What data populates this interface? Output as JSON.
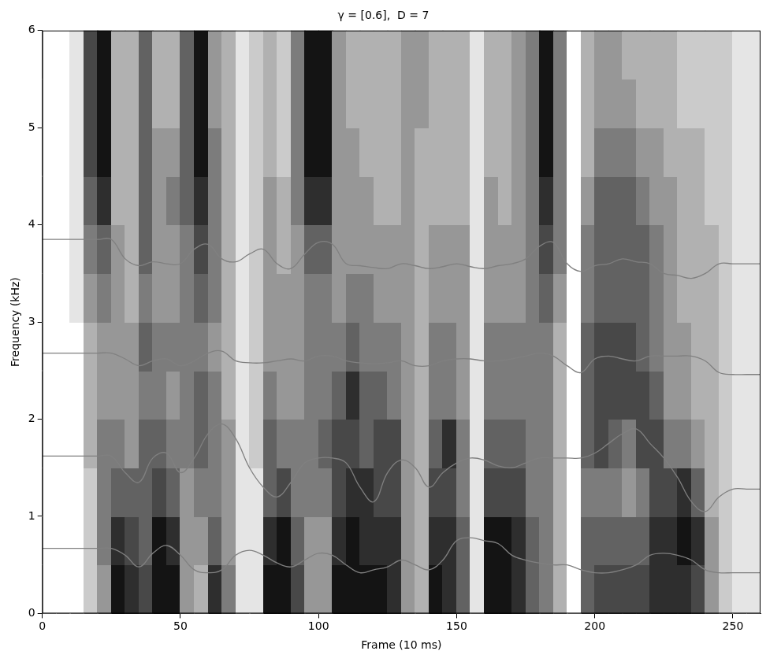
{
  "chart_data": {
    "type": "line",
    "title": "γ = [0.6],  D = 7",
    "x_label": "Frame (10 ms)",
    "y_label": "Frequency (kHz)",
    "xlim": [
      0,
      260
    ],
    "xticks": [
      0,
      50,
      100,
      150,
      200,
      250
    ],
    "ylim": [
      0,
      6
    ],
    "yticks": [
      0,
      1,
      2,
      3,
      4,
      5,
      6
    ],
    "grid": false,
    "x": [
      0,
      5,
      10,
      15,
      20,
      25,
      30,
      35,
      40,
      45,
      50,
      55,
      60,
      65,
      70,
      75,
      80,
      85,
      90,
      95,
      100,
      105,
      110,
      115,
      120,
      125,
      130,
      135,
      140,
      145,
      150,
      155,
      160,
      165,
      170,
      175,
      180,
      185,
      190,
      195,
      200,
      205,
      210,
      215,
      220,
      225,
      230,
      235,
      240,
      245,
      250,
      255,
      260
    ],
    "series": [
      {
        "color": "#808080",
        "line_style": "solid",
        "marker": "none",
        "values": [
          3.85,
          3.85,
          3.85,
          3.85,
          3.85,
          3.85,
          3.65,
          3.58,
          3.62,
          3.6,
          3.6,
          3.75,
          3.8,
          3.65,
          3.62,
          3.7,
          3.75,
          3.6,
          3.55,
          3.7,
          3.82,
          3.8,
          3.6,
          3.58,
          3.56,
          3.55,
          3.6,
          3.58,
          3.55,
          3.57,
          3.6,
          3.57,
          3.55,
          3.58,
          3.6,
          3.65,
          3.78,
          3.82,
          3.6,
          3.52,
          3.58,
          3.6,
          3.65,
          3.62,
          3.6,
          3.5,
          3.48,
          3.45,
          3.5,
          3.6,
          3.6,
          3.6,
          3.6
        ]
      },
      {
        "color": "#808080",
        "line_style": "solid",
        "marker": "none",
        "values": [
          2.68,
          2.68,
          2.68,
          2.68,
          2.68,
          2.68,
          2.62,
          2.55,
          2.6,
          2.62,
          2.55,
          2.6,
          2.68,
          2.7,
          2.6,
          2.58,
          2.58,
          2.6,
          2.62,
          2.6,
          2.65,
          2.65,
          2.6,
          2.58,
          2.57,
          2.58,
          2.6,
          2.55,
          2.55,
          2.6,
          2.62,
          2.62,
          2.6,
          2.6,
          2.62,
          2.65,
          2.68,
          2.65,
          2.55,
          2.48,
          2.62,
          2.65,
          2.62,
          2.6,
          2.65,
          2.65,
          2.65,
          2.65,
          2.6,
          2.48,
          2.46,
          2.46,
          2.46
        ]
      },
      {
        "color": "#808080",
        "line_style": "solid",
        "marker": "none",
        "values": [
          1.62,
          1.62,
          1.62,
          1.62,
          1.62,
          1.62,
          1.45,
          1.35,
          1.6,
          1.65,
          1.45,
          1.6,
          1.85,
          1.95,
          1.8,
          1.5,
          1.3,
          1.2,
          1.35,
          1.55,
          1.6,
          1.6,
          1.55,
          1.3,
          1.15,
          1.45,
          1.58,
          1.5,
          1.3,
          1.45,
          1.55,
          1.6,
          1.58,
          1.52,
          1.5,
          1.55,
          1.6,
          1.6,
          1.6,
          1.6,
          1.65,
          1.75,
          1.85,
          1.9,
          1.75,
          1.6,
          1.4,
          1.15,
          1.05,
          1.2,
          1.28,
          1.28,
          1.28
        ]
      },
      {
        "color": "#808080",
        "line_style": "solid",
        "marker": "none",
        "values": [
          0.67,
          0.67,
          0.67,
          0.67,
          0.67,
          0.67,
          0.6,
          0.48,
          0.62,
          0.7,
          0.6,
          0.45,
          0.42,
          0.45,
          0.6,
          0.65,
          0.6,
          0.52,
          0.48,
          0.55,
          0.62,
          0.6,
          0.5,
          0.42,
          0.45,
          0.48,
          0.55,
          0.5,
          0.45,
          0.55,
          0.75,
          0.78,
          0.75,
          0.72,
          0.6,
          0.55,
          0.52,
          0.5,
          0.5,
          0.45,
          0.42,
          0.42,
          0.45,
          0.5,
          0.6,
          0.62,
          0.6,
          0.55,
          0.45,
          0.42,
          0.42,
          0.42,
          0.42
        ]
      }
    ],
    "spectrogram": {
      "x_edges": [
        0,
        5,
        10,
        15,
        20,
        25,
        30,
        35,
        40,
        45,
        50,
        55,
        60,
        65,
        70,
        75,
        80,
        85,
        90,
        95,
        100,
        105,
        110,
        115,
        120,
        125,
        130,
        135,
        140,
        145,
        150,
        155,
        160,
        165,
        170,
        175,
        180,
        185,
        190,
        195,
        200,
        205,
        210,
        215,
        220,
        225,
        230,
        235,
        240,
        245,
        250,
        255,
        260
      ],
      "y_edges": [
        0,
        0.5,
        1,
        1.5,
        2,
        2.5,
        3,
        3.5,
        4,
        4.5,
        5,
        5.5,
        6
      ],
      "intensity_range": [
        0,
        9
      ],
      "cells": [
        [
          0,
          0,
          0,
          0,
          0,
          0,
          0,
          0,
          0,
          0,
          0,
          0
        ],
        [
          0,
          0,
          0,
          0,
          0,
          0,
          0,
          0,
          0,
          0,
          0,
          0
        ],
        [
          0,
          0,
          0,
          0,
          0,
          0,
          1,
          1,
          1,
          1,
          1,
          1
        ],
        [
          2,
          2,
          2,
          3,
          3,
          3,
          4,
          5,
          6,
          7,
          7,
          7
        ],
        [
          4,
          5,
          5,
          5,
          4,
          4,
          5,
          6,
          8,
          9,
          9,
          9
        ],
        [
          9,
          8,
          6,
          5,
          4,
          4,
          4,
          4,
          3,
          3,
          3,
          3
        ],
        [
          8,
          7,
          6,
          4,
          4,
          4,
          3,
          3,
          3,
          3,
          3,
          3
        ],
        [
          7,
          6,
          6,
          6,
          5,
          6,
          5,
          6,
          6,
          6,
          6,
          6
        ],
        [
          9,
          9,
          7,
          6,
          5,
          5,
          4,
          4,
          4,
          4,
          3,
          3
        ],
        [
          9,
          8,
          6,
          5,
          4,
          5,
          4,
          4,
          5,
          4,
          3,
          3
        ],
        [
          4,
          4,
          4,
          5,
          5,
          5,
          5,
          5,
          6,
          6,
          6,
          6
        ],
        [
          3,
          4,
          5,
          6,
          6,
          5,
          6,
          7,
          8,
          9,
          9,
          9
        ],
        [
          8,
          6,
          5,
          5,
          5,
          4,
          5,
          5,
          5,
          5,
          4,
          4
        ],
        [
          5,
          4,
          4,
          4,
          3,
          3,
          3,
          3,
          3,
          3,
          3,
          3
        ],
        [
          1,
          1,
          1,
          1,
          1,
          1,
          1,
          1,
          1,
          1,
          1,
          1
        ],
        [
          1,
          1,
          1,
          2,
          2,
          2,
          2,
          2,
          2,
          2,
          2,
          2
        ],
        [
          9,
          8,
          6,
          6,
          5,
          4,
          4,
          4,
          4,
          3,
          3,
          3
        ],
        [
          9,
          9,
          7,
          5,
          4,
          4,
          4,
          3,
          3,
          2,
          2,
          2
        ],
        [
          7,
          6,
          5,
          5,
          4,
          4,
          4,
          4,
          5,
          5,
          5,
          5
        ],
        [
          4,
          4,
          5,
          5,
          5,
          5,
          5,
          6,
          8,
          9,
          9,
          9
        ],
        [
          4,
          4,
          5,
          6,
          5,
          5,
          5,
          6,
          8,
          9,
          9,
          9
        ],
        [
          9,
          8,
          7,
          7,
          6,
          5,
          4,
          4,
          4,
          4,
          4,
          4
        ],
        [
          9,
          9,
          8,
          7,
          8,
          6,
          5,
          4,
          4,
          4,
          3,
          3
        ],
        [
          9,
          8,
          8,
          6,
          6,
          5,
          5,
          4,
          4,
          3,
          3,
          3
        ],
        [
          9,
          8,
          7,
          7,
          6,
          5,
          4,
          4,
          3,
          3,
          3,
          3
        ],
        [
          8,
          8,
          7,
          7,
          5,
          5,
          4,
          4,
          3,
          3,
          3,
          3
        ],
        [
          4,
          4,
          4,
          4,
          4,
          4,
          4,
          4,
          4,
          4,
          4,
          4
        ],
        [
          3,
          3,
          3,
          3,
          3,
          3,
          3,
          3,
          3,
          3,
          4,
          4
        ],
        [
          9,
          8,
          7,
          6,
          5,
          5,
          4,
          4,
          3,
          3,
          3,
          3
        ],
        [
          8,
          8,
          7,
          8,
          5,
          5,
          4,
          4,
          3,
          3,
          3,
          3
        ],
        [
          6,
          6,
          5,
          5,
          4,
          4,
          4,
          4,
          3,
          3,
          3,
          3
        ],
        [
          1,
          1,
          1,
          1,
          1,
          1,
          1,
          1,
          1,
          1,
          1,
          1
        ],
        [
          9,
          9,
          7,
          6,
          5,
          5,
          4,
          4,
          4,
          3,
          3,
          3
        ],
        [
          9,
          9,
          7,
          6,
          5,
          5,
          4,
          4,
          3,
          3,
          3,
          3
        ],
        [
          8,
          8,
          7,
          6,
          5,
          5,
          4,
          4,
          4,
          4,
          4,
          4
        ],
        [
          6,
          6,
          5,
          5,
          5,
          5,
          5,
          5,
          5,
          5,
          5,
          5
        ],
        [
          5,
          5,
          5,
          5,
          5,
          5,
          6,
          7,
          8,
          9,
          9,
          9
        ],
        [
          3,
          3,
          3,
          3,
          3,
          3,
          4,
          5,
          5,
          5,
          5,
          5
        ],
        [
          0,
          0,
          0,
          0,
          0,
          0,
          0,
          0,
          0,
          0,
          0,
          0
        ],
        [
          6,
          6,
          5,
          6,
          6,
          6,
          5,
          5,
          4,
          3,
          3,
          3
        ],
        [
          7,
          6,
          5,
          7,
          7,
          7,
          6,
          6,
          6,
          5,
          4,
          4
        ],
        [
          7,
          6,
          5,
          6,
          7,
          7,
          6,
          6,
          6,
          5,
          4,
          4
        ],
        [
          7,
          6,
          4,
          5,
          7,
          7,
          6,
          6,
          6,
          5,
          4,
          3
        ],
        [
          7,
          6,
          5,
          7,
          7,
          6,
          6,
          6,
          5,
          4,
          3,
          3
        ],
        [
          8,
          8,
          7,
          7,
          6,
          5,
          5,
          5,
          4,
          4,
          3,
          3
        ],
        [
          8,
          8,
          7,
          5,
          4,
          4,
          4,
          4,
          4,
          3,
          3,
          3
        ],
        [
          8,
          9,
          8,
          5,
          4,
          4,
          3,
          3,
          3,
          3,
          2,
          2
        ],
        [
          7,
          8,
          6,
          4,
          3,
          3,
          3,
          3,
          3,
          3,
          2,
          2
        ],
        [
          4,
          4,
          3,
          3,
          3,
          3,
          3,
          3,
          2,
          2,
          2,
          2
        ],
        [
          2,
          2,
          2,
          2,
          2,
          2,
          2,
          2,
          2,
          2,
          2,
          2
        ],
        [
          1,
          1,
          1,
          1,
          1,
          1,
          1,
          1,
          1,
          1,
          1,
          1
        ],
        [
          1,
          1,
          1,
          1,
          1,
          1,
          1,
          1,
          1,
          1,
          1,
          1
        ]
      ]
    }
  }
}
